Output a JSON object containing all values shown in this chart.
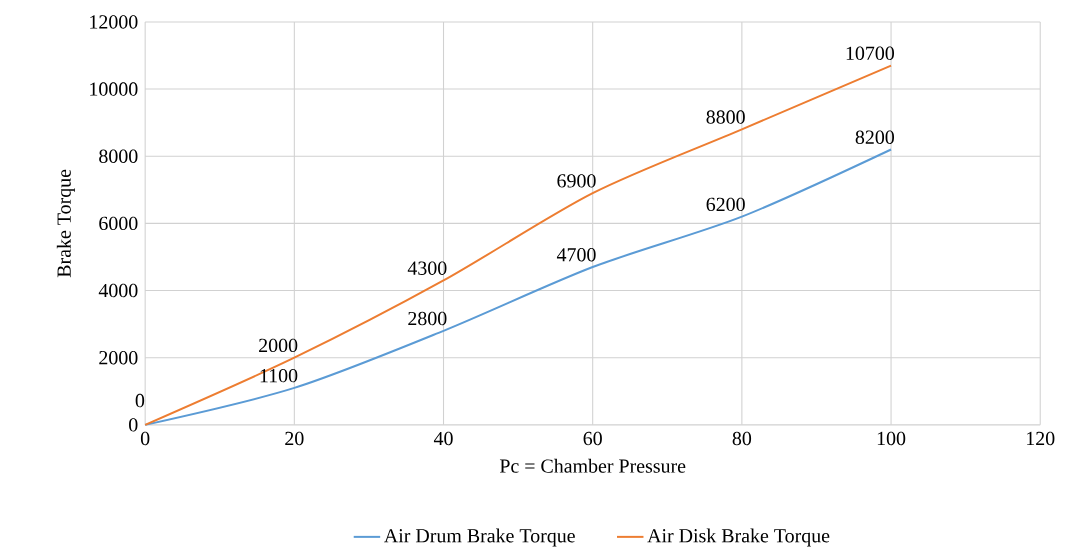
{
  "chart_data": {
    "type": "line",
    "xlabel": "Pc = Chamber Pressure",
    "ylabel": "Brake Torque",
    "x": [
      0,
      20,
      40,
      60,
      80,
      100
    ],
    "series": [
      {
        "name": "Air Drum Brake Torque",
        "color": "#5b9bd5",
        "values": [
          0,
          1100,
          2800,
          4700,
          6200,
          8200
        ],
        "value_labels": [
          "0",
          "1100",
          "2800",
          "4700",
          "6200",
          "8200"
        ]
      },
      {
        "name": "Air Disk Brake Torque",
        "color": "#ed7d31",
        "values": [
          0,
          2000,
          4300,
          6900,
          8800,
          10700
        ],
        "value_labels": [
          null,
          "2000",
          "4300",
          "6900",
          "8800",
          "10700"
        ]
      }
    ],
    "xlim": [
      0,
      120
    ],
    "xticks": [
      0,
      20,
      40,
      60,
      80,
      100,
      120
    ],
    "ylim": [
      0,
      12000
    ],
    "yticks": [
      0,
      2000,
      4000,
      6000,
      8000,
      10000,
      12000
    ],
    "grid": true,
    "legend": "bottom",
    "marker": "none",
    "line_style": "solid"
  }
}
